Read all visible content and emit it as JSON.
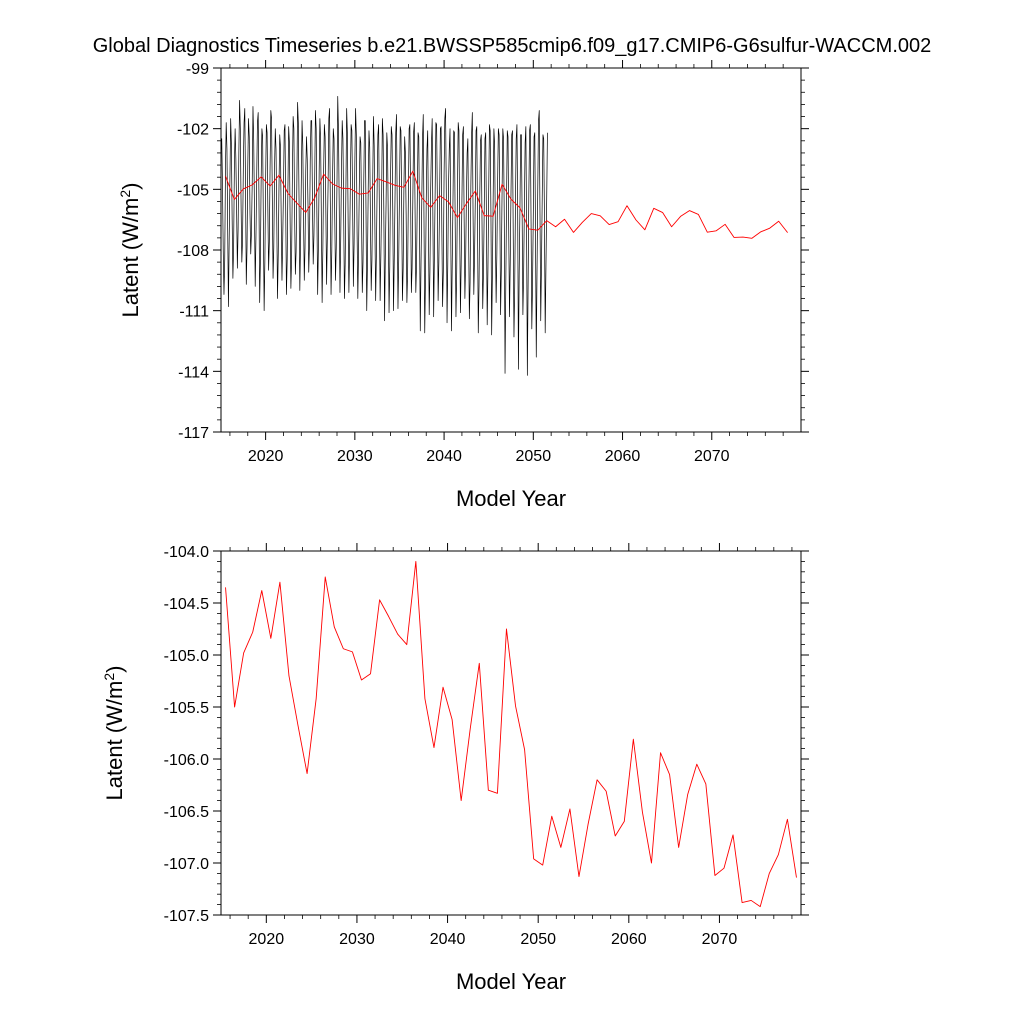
{
  "figure": {
    "title": "Global Diagnostics Timeseries b.e21.BWSSP585cmip6.f09_g17.CMIP6-G6sulfur-WACCM.002"
  },
  "colors": {
    "monthly": "#000000",
    "annual": "#ff0000",
    "axes": "#000000",
    "background": "#ffffff"
  },
  "chart_data": [
    {
      "type": "line",
      "xlabel": "Model Year",
      "ylabel_main": "Latent (W/m",
      "ylabel_sup": "2",
      "ylabel_end": ")",
      "xlim": [
        2015,
        2080
      ],
      "ylim": [
        -117,
        -99
      ],
      "xticks": [
        2020,
        2030,
        2040,
        2050,
        2060,
        2070
      ],
      "xtick_labels": [
        "2020",
        "2030",
        "2040",
        "2050",
        "2060",
        "2070"
      ],
      "yticks": [
        -117,
        -114,
        -111,
        -108,
        -105,
        -102,
        -99
      ],
      "ytick_labels": [
        "-117",
        "-114",
        "-111",
        "-108",
        "-105",
        "-102",
        "-99"
      ],
      "grid": false,
      "series": [
        {
          "color": "#000000",
          "monthly_x_start": 2015.0,
          "monthly_step": 0.08333,
          "values": [
            -103.2,
            -102.5,
            -104.8,
            -108.0,
            -110.2,
            -108.5,
            -104.0,
            -101.7,
            -103.0,
            -107.0,
            -110.8,
            -107.5,
            -104.5,
            -101.5,
            -102.8,
            -106.5,
            -109.4,
            -107.8,
            -103.8,
            -102.0,
            -103.5,
            -106.0,
            -108.9,
            -107.0,
            -103.2,
            -100.6,
            -102.0,
            -105.8,
            -108.6,
            -107.5,
            -104.0,
            -101.7,
            -101.0,
            -105.0,
            -109.7,
            -107.9,
            -103.9,
            -101.5,
            -102.4,
            -106.2,
            -108.2,
            -107.1,
            -104.6,
            -100.9,
            -102.6,
            -106.0,
            -109.8,
            -107.4,
            -104.4,
            -101.7,
            -101.2,
            -105.2,
            -110.6,
            -108.5,
            -104.5,
            -102.0,
            -102.4,
            -106.8,
            -111.0,
            -108.6,
            -104.6,
            -101.8,
            -102.2,
            -105.9,
            -109.0,
            -107.6,
            -103.9,
            -101.1,
            -101.5,
            -105.4,
            -109.4,
            -107.9,
            -104.0,
            -102.0,
            -103.0,
            -106.5,
            -110.4,
            -108.2,
            -104.8,
            -102.3,
            -102.9,
            -106.6,
            -109.5,
            -107.5,
            -105.0,
            -102.1,
            -101.8,
            -105.8,
            -110.2,
            -108.5,
            -104.9,
            -101.9,
            -102.7,
            -106.7,
            -109.9,
            -108.3,
            -104.3,
            -101.4,
            -102.0,
            -106.2,
            -109.2,
            -108.1,
            -104.7,
            -100.7,
            -101.7,
            -105.7,
            -110.0,
            -107.6,
            -104.6,
            -101.6,
            -102.8,
            -106.4,
            -109.5,
            -107.9,
            -104.1,
            -102.4,
            -103.5,
            -105.8,
            -109.1,
            -107.7,
            -103.6,
            -101.6,
            -101.6,
            -105.7,
            -108.7,
            -107.3,
            -104.5,
            -101.1,
            -102.0,
            -106.4,
            -110.2,
            -107.8,
            -104.2,
            -101.5,
            -102.6,
            -106.6,
            -110.6,
            -107.9,
            -104.2,
            -101.8,
            -102.4,
            -106.0,
            -109.7,
            -107.4,
            -104.8,
            -101.5,
            -101.0,
            -105.6,
            -110.2,
            -108.1,
            -104.5,
            -102.0,
            -102.5,
            -106.4,
            -109.5,
            -107.9,
            -104.6,
            -100.4,
            -102.1,
            -105.9,
            -110.1,
            -107.5,
            -104.2,
            -101.6,
            -102.5,
            -106.3,
            -110.4,
            -108.7,
            -104.9,
            -101.0,
            -102.3,
            -106.7,
            -110.1,
            -107.9,
            -104.6,
            -101.8,
            -102.1,
            -105.6,
            -109.8,
            -107.7,
            -103.7,
            -101.0,
            -102.3,
            -107.1,
            -110.4,
            -108.1,
            -104.8,
            -102.4,
            -102.7,
            -106.3,
            -110.1,
            -108.6,
            -104.7,
            -101.6,
            -101.6,
            -106.0,
            -111.0,
            -108.6,
            -104.9,
            -102.1,
            -102.9,
            -106.6,
            -110.0,
            -108.5,
            -104.8,
            -101.4,
            -102.8,
            -107.0,
            -110.5,
            -108.2,
            -104.8,
            -102.3,
            -101.8,
            -106.1,
            -110.5,
            -108.3,
            -105.5,
            -101.5,
            -102.3,
            -106.1,
            -111.5,
            -108.3,
            -105.7,
            -102.2,
            -103.0,
            -106.6,
            -111.1,
            -108.8,
            -104.5,
            -101.9,
            -102.3,
            -106.0,
            -111.0,
            -108.5,
            -105.5,
            -102.2,
            -101.3,
            -105.7,
            -110.9,
            -108.5,
            -105.3,
            -101.9,
            -102.1,
            -105.9,
            -110.5,
            -108.9,
            -104.9,
            -102.4,
            -103.2,
            -106.3,
            -110.6,
            -109.1,
            -105.3,
            -102.0,
            -101.8,
            -105.3,
            -110.1,
            -108.9,
            -105.5,
            -102.2,
            -101.7,
            -106.1,
            -110.1,
            -108.7,
            -105.5,
            -102.2,
            -102.4,
            -106.9,
            -112.0,
            -108.7,
            -105.7,
            -102.5,
            -101.3,
            -106.5,
            -112.1,
            -109.4,
            -105.6,
            -103.0,
            -102.1,
            -106.9,
            -111.2,
            -109.1,
            -105.0,
            -102.8,
            -101.5,
            -106.6,
            -111.3,
            -108.3,
            -105.1,
            -101.7,
            -101.8,
            -105.7,
            -110.5,
            -108.6,
            -105.4,
            -102.0,
            -101.9,
            -107.0,
            -110.8,
            -109.1,
            -104.3,
            -101.5,
            -101.0,
            -105.2,
            -111.6,
            -108.7,
            -104.8,
            -103.0,
            -102.0,
            -107.1,
            -112.0,
            -108.6,
            -105.5,
            -102.1,
            -102.2,
            -106.9,
            -111.3,
            -109.1,
            -105.1,
            -101.7,
            -102.1,
            -106.8,
            -111.1,
            -108.7,
            -105.6,
            -102.3,
            -101.9,
            -106.5,
            -110.4,
            -108.6,
            -105.5,
            -103.2,
            -102.5,
            -107.1,
            -111.4,
            -109.6,
            -104.9,
            -102.3,
            -101.2,
            -106.3,
            -110.2,
            -108.3,
            -105.5,
            -102.1,
            -101.9,
            -106.7,
            -112.1,
            -109.8,
            -105.4,
            -102.6,
            -102.3,
            -106.5,
            -110.9,
            -109.1,
            -106.0,
            -102.5,
            -102.2,
            -106.6,
            -111.7,
            -109.0,
            -105.2,
            -101.8,
            -102.1,
            -106.0,
            -112.2,
            -109.2,
            -105.5,
            -102.0,
            -102.8,
            -107.1,
            -110.6,
            -108.2,
            -104.7,
            -102.0,
            -102.3,
            -105.9,
            -111.2,
            -109.0,
            -105.1,
            -102.0,
            -102.5,
            -106.7,
            -114.1,
            -109.8,
            -105.6,
            -102.1,
            -102.4,
            -107.2,
            -111.3,
            -108.6,
            -105.2,
            -102.3,
            -102.1,
            -107.2,
            -112.3,
            -109.8,
            -105.7,
            -102.5,
            -101.8,
            -106.0,
            -113.9,
            -109.2,
            -106.1,
            -102.3,
            -102.3,
            -106.3,
            -111.2,
            -109.2,
            -105.9,
            -102.7,
            -101.9,
            -107.2,
            -114.2,
            -109.8,
            -105.2,
            -102.1,
            -101.8,
            -106.6,
            -111.9,
            -109.7,
            -106.2,
            -102.4,
            -102.2,
            -107.4,
            -113.3,
            -109.1,
            -105.0,
            -101.6,
            -101.1,
            -106.2,
            -111.5,
            -108.8,
            -105.4,
            -102.3,
            -102.5,
            -106.4,
            -112.1,
            -108.9,
            -105.6,
            -102.2
          ]
        },
        {
          "color": "#ff0000",
          "x": [
            2015.5,
            2016.5,
            2017.5,
            2018.5,
            2019.5,
            2020.5,
            2021.5,
            2022.5,
            2023.5,
            2024.5,
            2025.5,
            2026.5,
            2027.5,
            2028.5,
            2029.5,
            2030.5,
            2031.5,
            2032.5,
            2033.5,
            2034.5,
            2035.5,
            2036.5,
            2037.5,
            2038.5,
            2039.5,
            2040.5,
            2041.5,
            2042.5,
            2043.5,
            2044.5,
            2045.5,
            2046.5,
            2047.5,
            2048.5,
            2049.5,
            2050.5,
            2051.5,
            2052.5,
            2053.5,
            2054.5,
            2055.5,
            2056.5,
            2057.5,
            2058.5,
            2059.5,
            2060.5,
            2061.5,
            2062.5,
            2063.5,
            2064.5,
            2065.5,
            2066.5,
            2067.5,
            2068.5,
            2069.5,
            2070.5,
            2071.5,
            2072.5,
            2073.5,
            2074.5,
            2075.5,
            2076.5,
            2077.5,
            2078.5
          ],
          "values": [
            -104.35,
            -105.5,
            -104.98,
            -104.78,
            -104.38,
            -104.84,
            -104.3,
            -105.2,
            -105.68,
            -106.14,
            -105.42,
            -104.25,
            -104.73,
            -104.94,
            -104.97,
            -105.24,
            -105.18,
            -104.47,
            -104.63,
            -104.8,
            -104.9,
            -104.1,
            -105.42,
            -105.89,
            -105.31,
            -105.62,
            -106.4,
            -105.71,
            -105.08,
            -106.3,
            -106.33,
            -104.75,
            -105.49,
            -105.91,
            -106.96,
            -107.02,
            -106.55,
            -106.85,
            -106.48,
            -107.13,
            -106.63,
            -106.2,
            -106.31,
            -106.74,
            -106.6,
            -105.81,
            -106.51,
            -107.0,
            -105.94,
            -106.15,
            -106.85,
            -106.34,
            -106.05,
            -106.24,
            -107.12,
            -107.05,
            -106.73,
            -107.38,
            -107.36,
            -107.42,
            -107.1,
            -106.92,
            -106.58,
            -107.14
          ]
        }
      ]
    },
    {
      "type": "line",
      "xlabel": "Model Year",
      "ylabel_main": "Latent (W/m",
      "ylabel_sup": "2",
      "ylabel_end": ")",
      "xlim": [
        2015,
        2079
      ],
      "ylim": [
        -107.5,
        -104.0
      ],
      "xticks": [
        2020,
        2030,
        2040,
        2050,
        2060,
        2070
      ],
      "xtick_labels": [
        "2020",
        "2030",
        "2040",
        "2050",
        "2060",
        "2070"
      ],
      "yticks": [
        -107.5,
        -107.0,
        -106.5,
        -106.0,
        -105.5,
        -105.0,
        -104.5,
        -104.0
      ],
      "ytick_labels": [
        "-107.5",
        "-107.0",
        "-106.5",
        "-106.0",
        "-105.5",
        "-105.0",
        "-104.5",
        "-104.0"
      ],
      "grid": false,
      "series": [
        {
          "color": "#ff0000",
          "x": [
            2015.5,
            2016.5,
            2017.5,
            2018.5,
            2019.5,
            2020.5,
            2021.5,
            2022.5,
            2023.5,
            2024.5,
            2025.5,
            2026.5,
            2027.5,
            2028.5,
            2029.5,
            2030.5,
            2031.5,
            2032.5,
            2033.5,
            2034.5,
            2035.5,
            2036.5,
            2037.5,
            2038.5,
            2039.5,
            2040.5,
            2041.5,
            2042.5,
            2043.5,
            2044.5,
            2045.5,
            2046.5,
            2047.5,
            2048.5,
            2049.5,
            2050.5,
            2051.5,
            2052.5,
            2053.5,
            2054.5,
            2055.5,
            2056.5,
            2057.5,
            2058.5,
            2059.5,
            2060.5,
            2061.5,
            2062.5,
            2063.5,
            2064.5,
            2065.5,
            2066.5,
            2067.5,
            2068.5,
            2069.5,
            2070.5,
            2071.5,
            2072.5,
            2073.5,
            2074.5,
            2075.5,
            2076.5,
            2077.5,
            2078.5
          ],
          "values": [
            -104.35,
            -105.5,
            -104.98,
            -104.78,
            -104.38,
            -104.84,
            -104.3,
            -105.2,
            -105.68,
            -106.14,
            -105.42,
            -104.25,
            -104.73,
            -104.94,
            -104.97,
            -105.24,
            -105.18,
            -104.47,
            -104.63,
            -104.8,
            -104.9,
            -104.1,
            -105.42,
            -105.89,
            -105.31,
            -105.62,
            -106.4,
            -105.71,
            -105.08,
            -106.3,
            -106.33,
            -104.75,
            -105.49,
            -105.91,
            -106.96,
            -107.02,
            -106.55,
            -106.85,
            -106.48,
            -107.13,
            -106.63,
            -106.2,
            -106.31,
            -106.74,
            -106.6,
            -105.81,
            -106.51,
            -107.0,
            -105.94,
            -106.15,
            -106.85,
            -106.34,
            -106.05,
            -106.24,
            -107.12,
            -107.05,
            -106.73,
            -107.38,
            -107.36,
            -107.42,
            -107.1,
            -106.92,
            -106.58,
            -107.14
          ]
        }
      ]
    }
  ]
}
